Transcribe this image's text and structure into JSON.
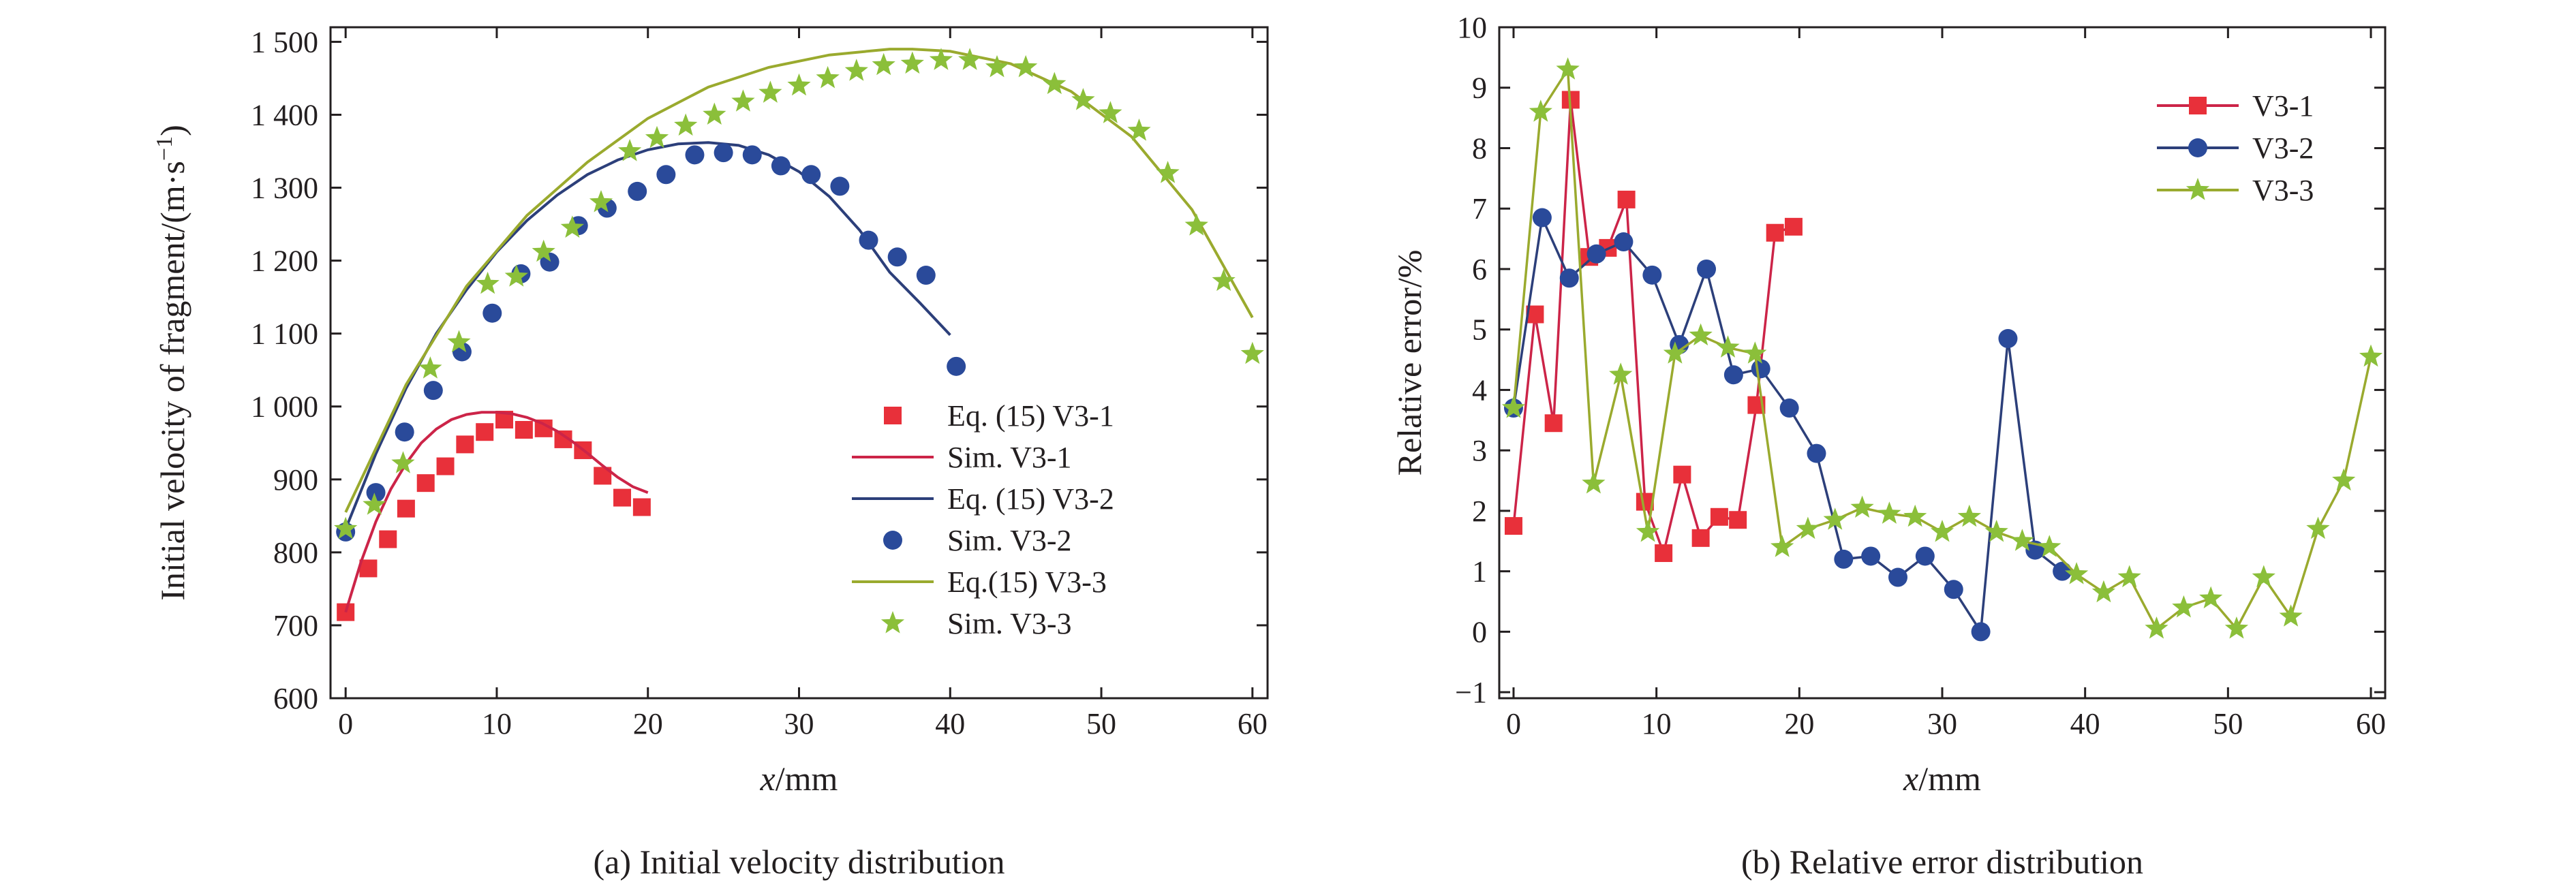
{
  "colors": {
    "v31": "#e8303a",
    "v32": "#2a4a9a",
    "v33": "#8bbf3a",
    "v31_line": "#cc2448",
    "v32_line": "#2c3f7a",
    "v33_line": "#9aaa2e",
    "axis": "#231f20"
  },
  "chart_data": [
    {
      "type": "scatter",
      "caption": "(a) Initial velocity distribution",
      "xlabel_var": "x",
      "xlabel_unit": "/mm",
      "ylabel": "Initial velocity of fragment/(m·s",
      "ylabel_sup": "−1",
      "ylabel_end": ")",
      "xlim": [
        -1,
        61
      ],
      "ylim": [
        600,
        1520
      ],
      "xticks": [
        0,
        10,
        20,
        30,
        40,
        50,
        60
      ],
      "xtick_labels": [
        "0",
        "10",
        "20",
        "30",
        "40",
        "50",
        "60"
      ],
      "yticks": [
        600,
        700,
        800,
        900,
        1000,
        1100,
        1200,
        1300,
        1400,
        1500
      ],
      "ytick_labels": [
        "600",
        "700",
        "800",
        "900",
        "1 000",
        "1 100",
        "1 200",
        "1 300",
        "1 400",
        "1 500"
      ],
      "legend_position": "bottom-right",
      "legend": [
        "Eq. (15) V3-1",
        "Sim. V3-1",
        "Eq. (15) V3-2",
        "Sim. V3-2",
        "Eq.(15) V3-3",
        "Sim. V3-3"
      ],
      "series": [
        {
          "key": "v31",
          "mark": "square",
          "x": [
            0,
            1.5,
            2.8,
            4.0,
            5.3,
            6.6,
            7.9,
            9.2,
            10.5,
            11.8,
            13.1,
            14.4,
            15.7,
            17.0,
            18.3,
            19.6
          ],
          "y": [
            718,
            778,
            818,
            860,
            895,
            918,
            948,
            965,
            982,
            968,
            970,
            955,
            940,
            905,
            875,
            862
          ]
        },
        {
          "key": "v31",
          "mark": "line",
          "x": [
            0,
            1,
            2,
            3,
            4,
            5,
            6,
            7,
            8,
            9,
            10,
            11,
            12,
            13,
            14,
            15,
            16,
            17,
            18,
            19,
            20
          ],
          "y": [
            718,
            786,
            842,
            887,
            922,
            950,
            969,
            982,
            989,
            992,
            992,
            990,
            985,
            977,
            966,
            952,
            936,
            919,
            903,
            890,
            882
          ]
        },
        {
          "key": "v32",
          "mark": "line",
          "x": [
            0,
            2,
            4,
            6,
            8,
            10,
            12,
            14,
            16,
            18,
            20,
            22,
            24,
            26,
            28,
            30,
            32,
            34,
            36,
            38,
            40
          ],
          "y": [
            832,
            935,
            1025,
            1100,
            1160,
            1212,
            1255,
            1290,
            1318,
            1338,
            1352,
            1360,
            1362,
            1358,
            1345,
            1322,
            1288,
            1242,
            1184,
            1142,
            1098
          ]
        },
        {
          "key": "v32",
          "mark": "circle",
          "x": [
            0,
            2.0,
            3.9,
            5.8,
            7.7,
            9.7,
            11.6,
            13.5,
            15.4,
            17.3,
            19.3,
            21.2,
            23.1,
            25.0,
            26.9,
            28.8,
            30.8,
            32.7,
            34.6,
            36.5,
            38.4,
            40.4
          ],
          "y": [
            828,
            882,
            965,
            1022,
            1075,
            1128,
            1182,
            1198,
            1248,
            1272,
            1295,
            1318,
            1345,
            1348,
            1345,
            1330,
            1318,
            1302,
            1228,
            1205,
            1180,
            1055
          ]
        },
        {
          "key": "v33",
          "mark": "line",
          "x": [
            0,
            4,
            8,
            12,
            16,
            20,
            24,
            28,
            32,
            36,
            37.5,
            40,
            44,
            48,
            52,
            56,
            60
          ],
          "y": [
            855,
            1030,
            1165,
            1262,
            1335,
            1395,
            1438,
            1465,
            1482,
            1490,
            1490,
            1487,
            1470,
            1432,
            1370,
            1270,
            1122
          ]
        },
        {
          "key": "v33",
          "mark": "star",
          "x": [
            0,
            1.9,
            3.8,
            5.6,
            7.5,
            9.4,
            11.3,
            13.1,
            15.0,
            16.9,
            18.8,
            20.6,
            22.5,
            24.4,
            26.3,
            28.1,
            30.0,
            31.9,
            33.8,
            35.6,
            37.5,
            39.4,
            41.3,
            43.1,
            45.0,
            46.9,
            48.8,
            50.6,
            52.5,
            54.4,
            56.3,
            58.1,
            60.0
          ],
          "y": [
            832,
            865,
            922,
            1052,
            1088,
            1168,
            1178,
            1212,
            1245,
            1280,
            1350,
            1368,
            1385,
            1400,
            1418,
            1430,
            1440,
            1450,
            1460,
            1468,
            1470,
            1475,
            1475,
            1465,
            1465,
            1442,
            1420,
            1402,
            1378,
            1320,
            1248,
            1172,
            1072
          ]
        }
      ]
    },
    {
      "type": "line",
      "caption": "(b) Relative error distribution",
      "xlabel_var": "x",
      "xlabel_unit": "/mm",
      "ylabel": "Relative error/%",
      "xlim": [
        -1,
        61
      ],
      "ylim": [
        -1.1,
        10
      ],
      "xticks": [
        0,
        10,
        20,
        30,
        40,
        50,
        60
      ],
      "xtick_labels": [
        "0",
        "10",
        "20",
        "30",
        "40",
        "50",
        "60"
      ],
      "yticks": [
        -1,
        0,
        1,
        2,
        3,
        4,
        5,
        6,
        7,
        8,
        9,
        10
      ],
      "ytick_labels": [
        "−1",
        "0",
        "1",
        "2",
        "3",
        "4",
        "5",
        "6",
        "7",
        "8",
        "9",
        "10"
      ],
      "legend_position": "top-right",
      "legend": [
        "V3-1",
        "V3-2",
        "V3-3"
      ],
      "series": [
        {
          "name": "V3-1",
          "key": "v31",
          "mark": "square",
          "x": [
            0,
            1.5,
            2.8,
            4.0,
            5.3,
            6.6,
            7.9,
            9.2,
            10.5,
            11.8,
            13.1,
            14.4,
            15.7,
            17.0,
            18.3,
            19.6
          ],
          "y": [
            1.75,
            5.25,
            3.45,
            8.8,
            6.2,
            6.35,
            7.15,
            2.15,
            1.3,
            2.6,
            1.55,
            1.9,
            1.85,
            3.75,
            6.6,
            6.7
          ]
        },
        {
          "name": "V3-2",
          "key": "v32",
          "mark": "circle",
          "x": [
            0,
            2.0,
            3.9,
            5.8,
            7.7,
            9.7,
            11.6,
            13.5,
            15.4,
            17.3,
            19.3,
            21.2,
            23.1,
            25.0,
            26.9,
            28.8,
            30.8,
            32.7,
            34.6,
            36.5,
            38.4
          ],
          "y": [
            3.7,
            6.85,
            5.85,
            6.25,
            6.45,
            5.9,
            4.75,
            6.0,
            4.25,
            4.35,
            3.7,
            2.95,
            1.2,
            1.25,
            0.9,
            1.25,
            0.7,
            0.0,
            4.85,
            1.35,
            1.0
          ]
        },
        {
          "name": "V3-3",
          "key": "v33",
          "mark": "star",
          "x": [
            0,
            1.9,
            3.8,
            5.6,
            7.5,
            9.4,
            11.3,
            13.1,
            15.0,
            16.9,
            18.8,
            20.6,
            22.5,
            24.4,
            26.3,
            28.1,
            30.0,
            31.9,
            33.8,
            35.6,
            37.5,
            39.4,
            41.3,
            43.1,
            45.0,
            46.9,
            48.8,
            50.6,
            52.5,
            54.4,
            56.3,
            58.1,
            60.0
          ],
          "y": [
            3.7,
            8.6,
            9.3,
            2.45,
            4.25,
            1.65,
            4.6,
            4.9,
            4.7,
            4.6,
            1.4,
            1.7,
            1.85,
            2.05,
            1.95,
            1.9,
            1.65,
            1.9,
            1.65,
            1.5,
            1.4,
            0.95,
            0.65,
            0.9,
            0.05,
            0.4,
            0.55,
            0.05,
            0.9,
            0.25,
            1.7,
            2.5,
            4.55
          ]
        }
      ]
    }
  ]
}
